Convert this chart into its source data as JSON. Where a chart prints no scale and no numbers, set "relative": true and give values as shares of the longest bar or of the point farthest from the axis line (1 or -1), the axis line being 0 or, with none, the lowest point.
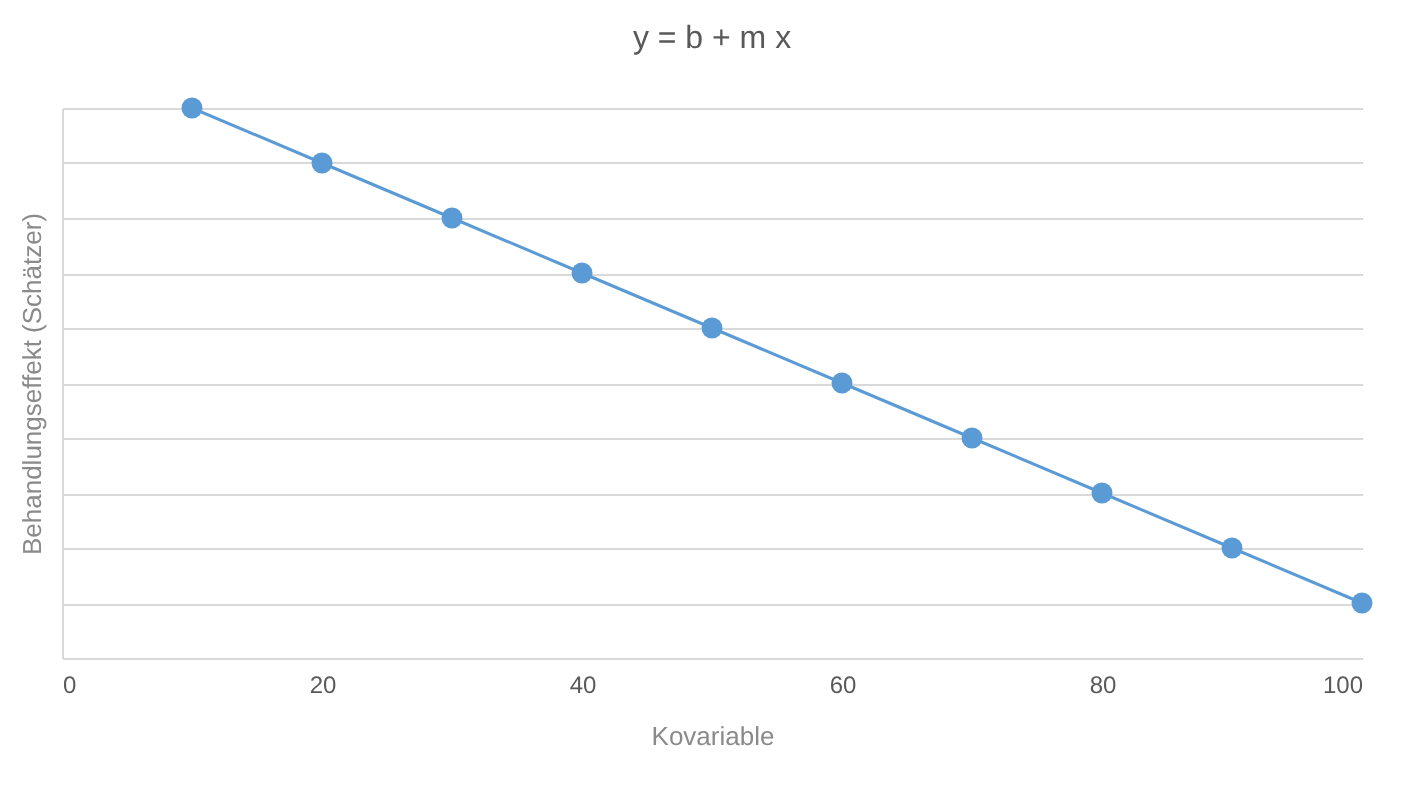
{
  "chart_data": {
    "type": "line",
    "title": "y = b + m x",
    "xlabel": "Kovariable",
    "ylabel": "Behandlungseffekt  (Schätzer)",
    "x": [
      10,
      20,
      30,
      40,
      50,
      60,
      70,
      80,
      90,
      100
    ],
    "series": [
      {
        "color": "#5b9bd5",
        "values": [
          1,
          0.9,
          0.8,
          0.7,
          0.6,
          0.5,
          0.4,
          0.3,
          0.2,
          0.1
        ]
      }
    ],
    "relative": true,
    "xlim": [
      0,
      100
    ],
    "xticks": [
      0,
      20,
      40,
      60,
      80,
      100
    ],
    "grid": "y",
    "marker": "circle",
    "line_style": "solid"
  }
}
